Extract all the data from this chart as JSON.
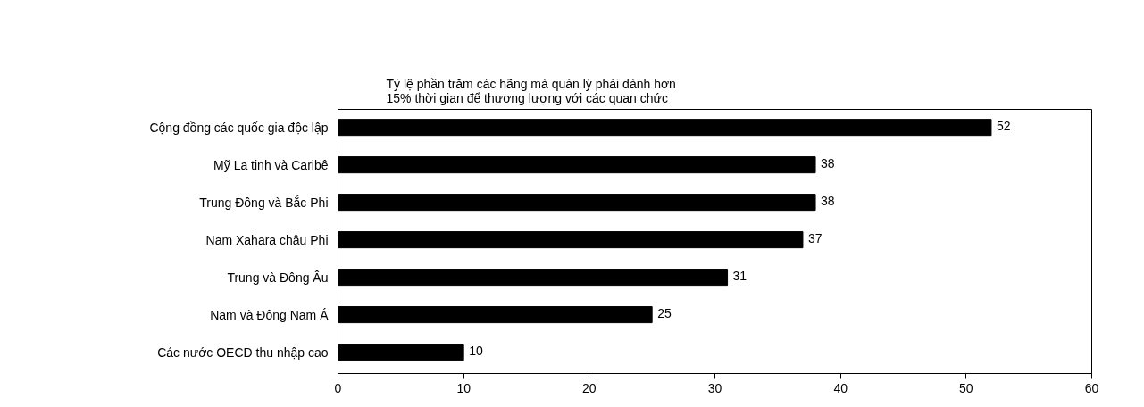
{
  "chart_data": {
    "type": "bar",
    "orientation": "horizontal",
    "title": "Tỷ lệ phần trăm các hãng mà quản lý phải dành hơn\n15% thời gian để thương lượng với các quan chức",
    "categories": [
      "Cộng đồng các quốc gia độc lập",
      "Mỹ La tinh và Caribê",
      "Trung Đông và Bắc Phi",
      "Nam Xahara châu Phi",
      "Trung và Đông Âu",
      "Nam và Đông Nam Á",
      "Các nước OECD thu nhập cao"
    ],
    "values": [
      52,
      38,
      38,
      37,
      31,
      25,
      10
    ],
    "color": "#000000",
    "xlim": [
      0,
      60
    ],
    "xticks": [
      0,
      10,
      20,
      30,
      40,
      50,
      60
    ],
    "data_labels": true,
    "grid": false
  }
}
